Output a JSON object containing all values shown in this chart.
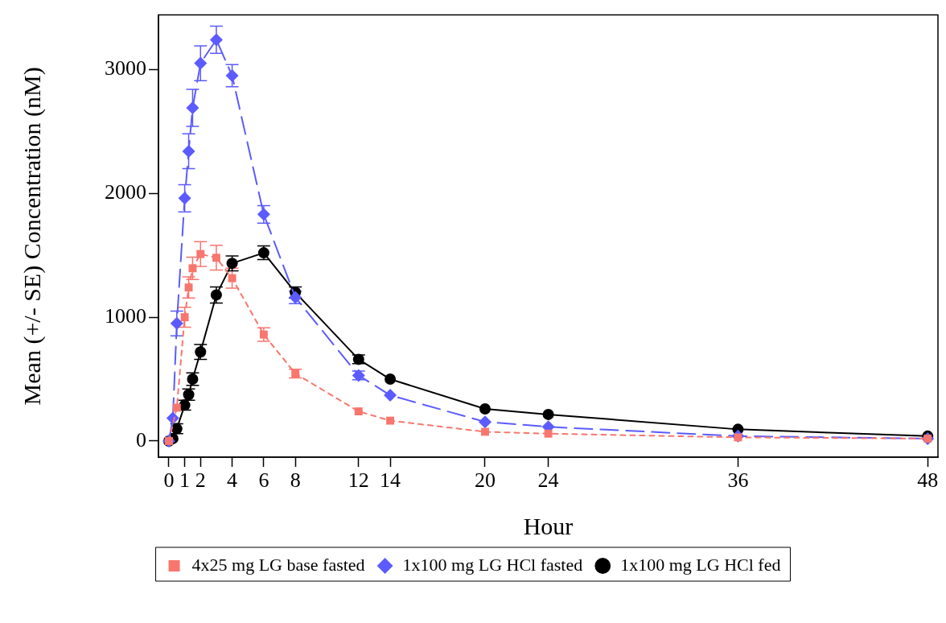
{
  "chart_data": {
    "type": "line",
    "xlabel": "Hour",
    "ylabel": "Mean (+/- SE) Concentration (nM)",
    "xlim": [
      -0.66,
      48.65
    ],
    "xticks": [
      0,
      1,
      2,
      4,
      6,
      8,
      12,
      14,
      20,
      24,
      36,
      48
    ],
    "ylim": [
      -130,
      3440
    ],
    "yticks": [
      0,
      1000,
      2000,
      3000
    ],
    "grid": false,
    "legend": "bottom",
    "series": [
      {
        "name": "4x25 mg LG base fasted",
        "color": "#f8766d",
        "marker": "square",
        "line_style": "dotted",
        "x": [
          0,
          0.5,
          1,
          1.25,
          1.5,
          2,
          3,
          4,
          6,
          8,
          12,
          14,
          20,
          24,
          36,
          48
        ],
        "values": [
          0,
          270,
          1000,
          1240,
          1395,
          1510,
          1480,
          1315,
          860,
          545,
          240,
          165,
          75,
          60,
          30,
          20
        ],
        "errors": [
          null,
          null,
          80,
          85,
          90,
          100,
          100,
          80,
          55,
          35,
          null,
          null,
          null,
          null,
          null,
          null
        ]
      },
      {
        "name": "1x100 mg LG HCl fasted",
        "color": "#5b5bff",
        "marker": "diamond",
        "line_style": "dashed",
        "x": [
          0,
          0.25,
          0.5,
          1,
          1.25,
          1.5,
          2,
          3,
          4,
          6,
          8,
          12,
          14,
          20,
          24,
          36,
          48
        ],
        "values": [
          0,
          185,
          950,
          1960,
          2340,
          2690,
          3050,
          3240,
          2950,
          1830,
          1160,
          530,
          370,
          155,
          115,
          40,
          20
        ],
        "errors": [
          null,
          null,
          100,
          110,
          140,
          150,
          140,
          110,
          90,
          70,
          50,
          35,
          null,
          null,
          null,
          null,
          null
        ]
      },
      {
        "name": "1x100 mg LG HCl fed",
        "color": "#000000",
        "marker": "circle",
        "line_style": "solid",
        "x": [
          0,
          0.25,
          0.5,
          1,
          1.25,
          1.5,
          2,
          3,
          4,
          6,
          8,
          12,
          14,
          20,
          24,
          36,
          48
        ],
        "values": [
          0,
          20,
          100,
          290,
          375,
          500,
          720,
          1180,
          1435,
          1520,
          1200,
          660,
          500,
          260,
          215,
          95,
          40
        ],
        "errors": [
          null,
          null,
          40,
          40,
          45,
          50,
          60,
          65,
          60,
          55,
          45,
          35,
          null,
          null,
          null,
          null,
          null
        ]
      }
    ]
  }
}
